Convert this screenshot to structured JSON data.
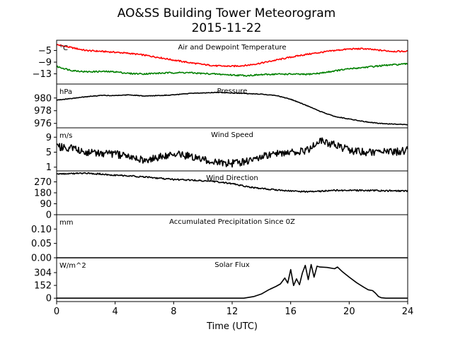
{
  "title": "AO&SS Building Tower Meteorogram",
  "subtitle": "2015-11-22",
  "xlabel": "Time (UTC)",
  "colors": {
    "temperature": "#ff0000",
    "dewpoint": "#008000",
    "line": "#000000",
    "axes": "#000000"
  },
  "chart_data": {
    "type": "line",
    "x_range": [
      0,
      24
    ],
    "x_ticks": [
      "0",
      "4",
      "8",
      "12",
      "16",
      "20",
      "24"
    ],
    "x_tick_values": [
      0,
      4,
      8,
      12,
      16,
      20,
      24
    ],
    "panels": [
      {
        "title": "Air and Dewpoint Temperature",
        "unit": "°C",
        "ylim": [
          -16.5,
          -1.5
        ],
        "yticks": [
          -5,
          -9,
          -13
        ],
        "ytick_labels": [
          "−5",
          "−9",
          "−13"
        ],
        "noise": 0.25,
        "series": [
          {
            "color": "temperature",
            "x": [
              0,
              1,
              2,
              3,
              4,
              5,
              6,
              7,
              8,
              9,
              10,
              11,
              12,
              13,
              14,
              15,
              16,
              17,
              18,
              19,
              20,
              21,
              22,
              23,
              24
            ],
            "y": [
              -3.0,
              -4.0,
              -5.0,
              -5.3,
              -5.6,
              -6.0,
              -6.6,
              -7.4,
              -8.3,
              -9.1,
              -9.8,
              -10.3,
              -10.4,
              -10.1,
              -9.3,
              -8.3,
              -7.3,
              -6.4,
              -5.7,
              -5.0,
              -4.5,
              -4.4,
              -4.9,
              -5.3,
              -5.3
            ]
          },
          {
            "color": "dewpoint",
            "x": [
              0,
              1,
              2,
              3,
              4,
              5,
              6,
              7,
              8,
              9,
              10,
              11,
              12,
              13,
              14,
              15,
              16,
              17,
              18,
              19,
              20,
              21,
              22,
              23,
              24
            ],
            "y": [
              -10.5,
              -11.8,
              -12.3,
              -12.2,
              -12.3,
              -12.9,
              -13.0,
              -12.8,
              -12.6,
              -12.6,
              -12.9,
              -13.1,
              -13.4,
              -13.6,
              -13.3,
              -13.1,
              -13.1,
              -13.2,
              -12.8,
              -12.0,
              -11.3,
              -10.8,
              -10.3,
              -9.9,
              -9.6
            ]
          }
        ]
      },
      {
        "title": "Pressure",
        "unit": "hPa",
        "ylim": [
          975.3,
          982.2
        ],
        "yticks": [
          980,
          978,
          976
        ],
        "ytick_labels": [
          "980",
          "978",
          "976"
        ],
        "noise": 0.05,
        "series": [
          {
            "color": "line",
            "x": [
              0,
              1,
              2,
              3,
              4,
              5,
              6,
              7,
              8,
              9,
              10,
              11,
              12,
              13,
              14,
              15,
              16,
              17,
              18,
              19,
              20,
              21,
              22,
              23,
              24
            ],
            "y": [
              979.7,
              979.9,
              980.2,
              980.4,
              980.4,
              980.5,
              980.3,
              980.4,
              980.5,
              980.7,
              980.8,
              980.9,
              980.8,
              980.7,
              980.6,
              980.4,
              979.8,
              978.9,
              977.9,
              977.1,
              976.7,
              976.3,
              976.0,
              975.9,
              975.8
            ]
          }
        ]
      },
      {
        "title": "Wind Speed",
        "unit": "m/s",
        "ylim": [
          0,
          11.5
        ],
        "yticks": [
          9,
          5,
          1
        ],
        "ytick_labels": [
          "9",
          "5",
          "1"
        ],
        "noise": 1.0,
        "series": [
          {
            "color": "line",
            "x": [
              0,
              1,
              2,
              3,
              4,
              5,
              6,
              7,
              8,
              9,
              10,
              11,
              12,
              13,
              14,
              15,
              16,
              17,
              18,
              19,
              20,
              21,
              22,
              23,
              24
            ],
            "y": [
              6.5,
              6.0,
              5.0,
              4.8,
              4.5,
              3.7,
              3.0,
              3.7,
              4.5,
              4.0,
              3.0,
              2.3,
              2.0,
              2.6,
              4.0,
              4.5,
              5.0,
              5.2,
              8.0,
              7.0,
              5.5,
              5.0,
              5.2,
              5.0,
              5.5
            ]
          }
        ]
      },
      {
        "title": "Wind Direction",
        "unit": "",
        "ylim": [
          0,
          360
        ],
        "yticks": [
          270,
          180,
          90,
          0
        ],
        "ytick_labels": [
          "270",
          "180",
          "90",
          "0"
        ],
        "noise": 6,
        "series": [
          {
            "color": "line",
            "x": [
              0,
              1,
              2,
              3,
              4,
              5,
              6,
              7,
              8,
              9,
              10,
              11,
              12,
              13,
              14,
              15,
              16,
              17,
              18,
              19,
              20,
              21,
              22,
              23,
              24
            ],
            "y": [
              335,
              338,
              340,
              335,
              325,
              320,
              310,
              300,
              290,
              285,
              280,
              270,
              255,
              230,
              215,
              205,
              195,
              190,
              193,
              200,
              200,
              200,
              198,
              196,
              196
            ]
          }
        ]
      },
      {
        "title": "Accumulated Precipitation Since 0Z",
        "unit": "mm",
        "ylim": [
          0,
          0.15
        ],
        "yticks": [
          0.1,
          0.05,
          0.0
        ],
        "ytick_labels": [
          "0.10",
          "0.05",
          "0.00"
        ],
        "noise": 0,
        "series": [
          {
            "color": "line",
            "x": [
              0,
              24
            ],
            "y": [
              0,
              0
            ]
          }
        ]
      },
      {
        "title": "Solar Flux",
        "unit": "W/m^2",
        "ylim": [
          -40,
          480
        ],
        "yticks": [
          304,
          152,
          0
        ],
        "ytick_labels": [
          "304",
          "152",
          "0"
        ],
        "noise": 0,
        "series": [
          {
            "color": "line",
            "x": [
              0,
              12.8,
              13.5,
              14.0,
              14.5,
              15.0,
              15.3,
              15.6,
              15.8,
              16.0,
              16.2,
              16.4,
              16.6,
              16.8,
              17.0,
              17.2,
              17.4,
              17.6,
              17.8,
              18.0,
              18.5,
              19.0,
              19.2,
              19.5,
              20.0,
              20.5,
              21.0,
              21.3,
              21.6,
              21.8,
              22.0,
              22.2,
              22.5,
              23.0,
              24.0
            ],
            "y": [
              0,
              0,
              20,
              50,
              100,
              140,
              170,
              240,
              180,
              340,
              150,
              230,
              160,
              300,
              390,
              220,
              400,
              250,
              380,
              370,
              365,
              350,
              370,
              320,
              250,
              185,
              130,
              100,
              90,
              60,
              20,
              5,
              0,
              0,
              0
            ]
          }
        ]
      }
    ]
  }
}
